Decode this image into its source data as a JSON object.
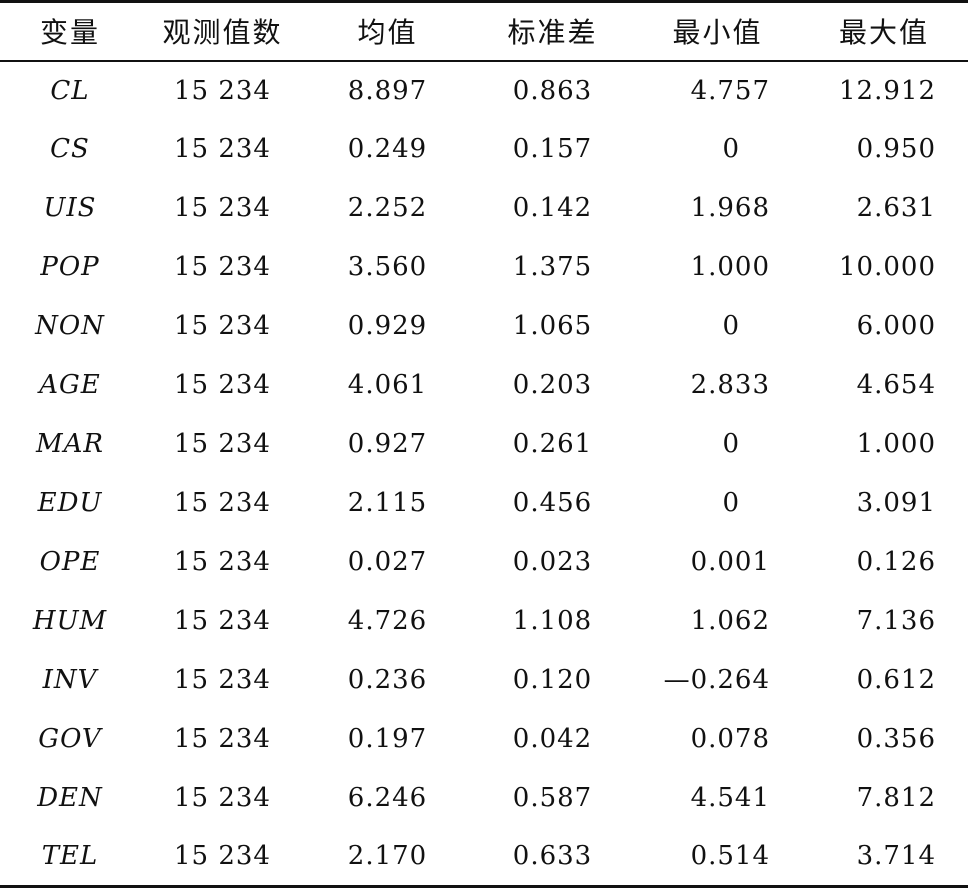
{
  "header": {
    "variable": "变量",
    "observations": "观测值数",
    "mean": "均值",
    "sd": "标准差",
    "min": "最小值",
    "max": "最大值"
  },
  "rows": [
    {
      "variable": "CL",
      "observations": "15 234",
      "mean": "8.897",
      "sd": "0.863",
      "min": "4.757",
      "max": "12.912"
    },
    {
      "variable": "CS",
      "observations": "15 234",
      "mean": "0.249",
      "sd": "0.157",
      "min": "0",
      "max": "0.950"
    },
    {
      "variable": "UIS",
      "observations": "15 234",
      "mean": "2.252",
      "sd": "0.142",
      "min": "1.968",
      "max": "2.631"
    },
    {
      "variable": "POP",
      "observations": "15 234",
      "mean": "3.560",
      "sd": "1.375",
      "min": "1.000",
      "max": "10.000"
    },
    {
      "variable": "NON",
      "observations": "15 234",
      "mean": "0.929",
      "sd": "1.065",
      "min": "0",
      "max": "6.000"
    },
    {
      "variable": "AGE",
      "observations": "15 234",
      "mean": "4.061",
      "sd": "0.203",
      "min": "2.833",
      "max": "4.654"
    },
    {
      "variable": "MAR",
      "observations": "15 234",
      "mean": "0.927",
      "sd": "0.261",
      "min": "0",
      "max": "1.000"
    },
    {
      "variable": "EDU",
      "observations": "15 234",
      "mean": "2.115",
      "sd": "0.456",
      "min": "0",
      "max": "3.091"
    },
    {
      "variable": "OPE",
      "observations": "15 234",
      "mean": "0.027",
      "sd": "0.023",
      "min": "0.001",
      "max": "0.126"
    },
    {
      "variable": "HUM",
      "observations": "15 234",
      "mean": "4.726",
      "sd": "1.108",
      "min": "1.062",
      "max": "7.136"
    },
    {
      "variable": "INV",
      "observations": "15 234",
      "mean": "0.236",
      "sd": "0.120",
      "min": "—0.264",
      "max": "0.612"
    },
    {
      "variable": "GOV",
      "observations": "15 234",
      "mean": "0.197",
      "sd": "0.042",
      "min": "0.078",
      "max": "0.356"
    },
    {
      "variable": "DEN",
      "observations": "15 234",
      "mean": "6.246",
      "sd": "0.587",
      "min": "4.541",
      "max": "7.812"
    },
    {
      "variable": "TEL",
      "observations": "15 234",
      "mean": "2.170",
      "sd": "0.633",
      "min": "0.514",
      "max": "3.714"
    }
  ]
}
